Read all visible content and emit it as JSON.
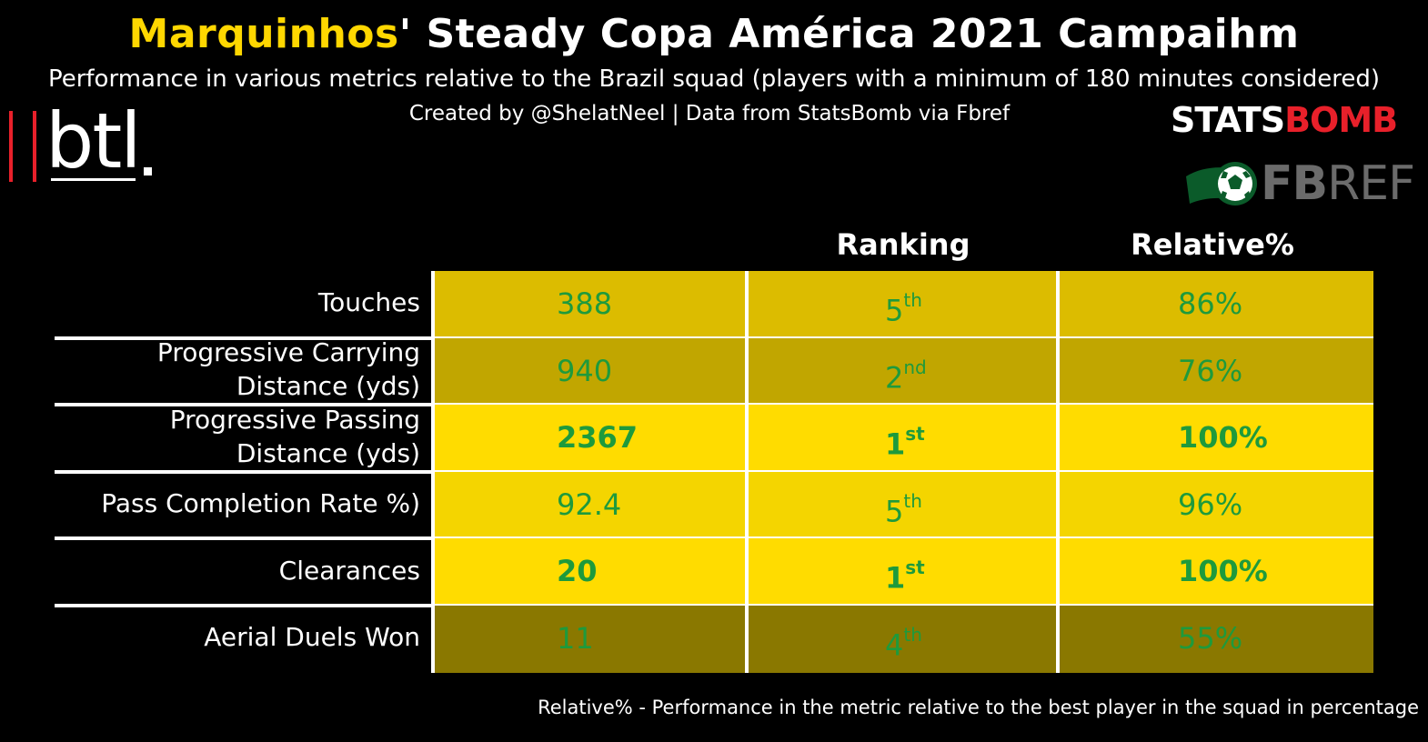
{
  "title": {
    "player": "Marquinhos",
    "rest": "' Steady Copa América 2021 Campaihm"
  },
  "subtitle": "Performance in various metrics relative to the Brazil squad (players with a minimum of 180 minutes considered)",
  "credit": "Created by @ShelatNeel | Data from StatsBomb via Fbref",
  "logos": {
    "btl": "btl",
    "statsbomb_white": "STATS",
    "statsbomb_red": "BOMB",
    "fbref_bold": "FB",
    "fbref_light": "REF"
  },
  "footnote": "Relative% - Performance in the metric relative to the best player in the squad in percentage",
  "colors": {
    "accent": "#ffd700",
    "value_text": "#1e9a3c",
    "logo_red": "#e8202a"
  },
  "chart_data": {
    "type": "table",
    "columns": [
      "",
      "Ranking",
      "Relative%"
    ],
    "rows": [
      {
        "metric": "Touches",
        "value": "388",
        "rank_num": "5",
        "rank_suffix": "th",
        "relative": "86%",
        "relative_value": 86,
        "bold": false,
        "fill": "#dcbc00"
      },
      {
        "metric": "Progressive Carrying Distance (yds)",
        "metric_lines": [
          "Progressive Carrying",
          "Distance (yds)"
        ],
        "value": "940",
        "rank_num": "2",
        "rank_suffix": "nd",
        "relative": "76%",
        "relative_value": 76,
        "bold": false,
        "fill": "#c1a600"
      },
      {
        "metric": "Progressive Passing Distance (yds)",
        "metric_lines": [
          "Progressive Passing",
          "Distance (yds)"
        ],
        "value": "2367",
        "rank_num": "1",
        "rank_suffix": "st",
        "relative": "100%",
        "relative_value": 100,
        "bold": true,
        "fill": "#ffdc00"
      },
      {
        "metric": "Pass Completion Rate  %)",
        "value": "92.4",
        "rank_num": "5",
        "rank_suffix": "th",
        "relative": "96%",
        "relative_value": 96,
        "bold": false,
        "fill": "#f4d500"
      },
      {
        "metric": "Clearances",
        "value": "20",
        "rank_num": "1",
        "rank_suffix": "st",
        "relative": "100%",
        "relative_value": 100,
        "bold": true,
        "fill": "#ffdc00"
      },
      {
        "metric": "Aerial Duels Won",
        "value": "11",
        "rank_num": "4",
        "rank_suffix": "th",
        "relative": "55%",
        "relative_value": 55,
        "bold": false,
        "fill": "#8a7800"
      }
    ]
  }
}
